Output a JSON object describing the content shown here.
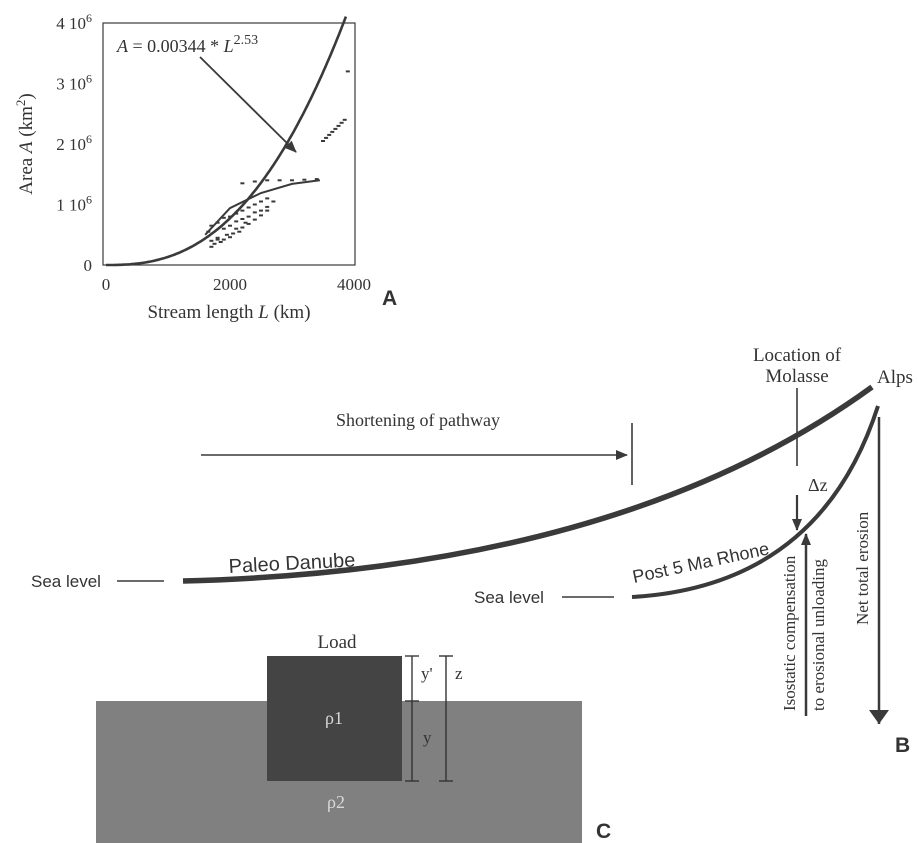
{
  "colors": {
    "stroke": "#3a3a3a",
    "text": "#333333",
    "mantle": "#808080",
    "load": "#444444",
    "light_text": "#d8d8d8"
  },
  "panel_a": {
    "panel_label": "A",
    "equation": {
      "lhs": "A",
      "eq": " = 0.00344 * ",
      "var": "L",
      "exp": "2.53"
    },
    "ylabel": {
      "pre": "Area ",
      "var": "A",
      "post": " (km",
      "sup": "2",
      "close": ")"
    },
    "xlabel": {
      "pre": "Stream length ",
      "var": "L",
      "post": " (km)"
    },
    "yticks": [
      {
        "mant": "0",
        "exp": ""
      },
      {
        "mant": "1 10",
        "exp": "6"
      },
      {
        "mant": "2 10",
        "exp": "6"
      },
      {
        "mant": "3 10",
        "exp": "6"
      },
      {
        "mant": "4 10",
        "exp": "6"
      }
    ],
    "xticks": [
      "0",
      "2000",
      "4000"
    ]
  },
  "chart_data": {
    "type": "scatter",
    "xlabel": "Stream length L (km)",
    "ylabel": "Area A (km2)",
    "xlim": [
      0,
      4000
    ],
    "ylim": [
      0,
      4000000
    ],
    "xticks": [
      0,
      2000,
      4000
    ],
    "yticks": [
      0,
      1000000,
      2000000,
      3000000,
      4000000
    ],
    "fit": {
      "a": 0.00344,
      "b": 2.53,
      "label": "A = 0.00344 * L^2.53"
    },
    "series": [
      {
        "type": "line",
        "x": [
          1600,
          2000,
          2500,
          3000,
          3450
        ],
        "y": [
          500000,
          940000,
          1190000,
          1340000,
          1400000
        ]
      },
      {
        "type": "scatter",
        "x": [
          1700,
          1750,
          1800,
          1850,
          1900,
          1950,
          2000,
          2050,
          2100,
          2150,
          2200,
          2250,
          2300,
          2400,
          2500,
          2600,
          2700,
          1650,
          1700,
          1800,
          1900,
          2000,
          2100,
          2200,
          2300,
          2400,
          2500,
          2600,
          1700,
          1800,
          1900,
          2000,
          2100,
          2200,
          2300,
          2400,
          2500,
          2600,
          2200,
          2400,
          2600,
          2800,
          3000,
          3200,
          3400,
          3500,
          3550,
          3600,
          3650,
          3700,
          3750,
          3800,
          3850,
          3900
        ],
        "y": [
          300000,
          350000,
          450000,
          380000,
          420000,
          500000,
          460000,
          520000,
          600000,
          550000,
          620000,
          700000,
          680000,
          750000,
          820000,
          900000,
          1050000,
          550000,
          650000,
          700000,
          780000,
          800000,
          850000,
          900000,
          950000,
          1000000,
          1050000,
          1100000,
          400000,
          420000,
          600000,
          650000,
          720000,
          760000,
          800000,
          870000,
          900000,
          960000,
          1350000,
          1380000,
          1400000,
          1400000,
          1400000,
          1410000,
          1420000,
          2050000,
          2100000,
          2150000,
          2200000,
          2250000,
          2300000,
          2350000,
          2400000,
          3200000
        ]
      }
    ]
  },
  "panel_b": {
    "panel_label": "B",
    "location_l1": "Location of",
    "location_l2": "Molasse",
    "alps": "Alps",
    "shortening": "Shortening of pathway",
    "dz": "Δz",
    "sea_level_left": "Sea level",
    "paleo_danube": "Paleo Danube",
    "sea_level_right": "Sea level",
    "post5": "Post 5 Ma Rhone",
    "isostatic_l1": "Isostatic compensation",
    "isostatic_l2": "to erosional unloading",
    "net_erosion": "Net total erosion"
  },
  "panel_c": {
    "panel_label": "C",
    "load": "Load",
    "rho1": "ρ1",
    "rho2": "ρ2",
    "y_prime": "y'",
    "y": "y",
    "z": "z"
  }
}
